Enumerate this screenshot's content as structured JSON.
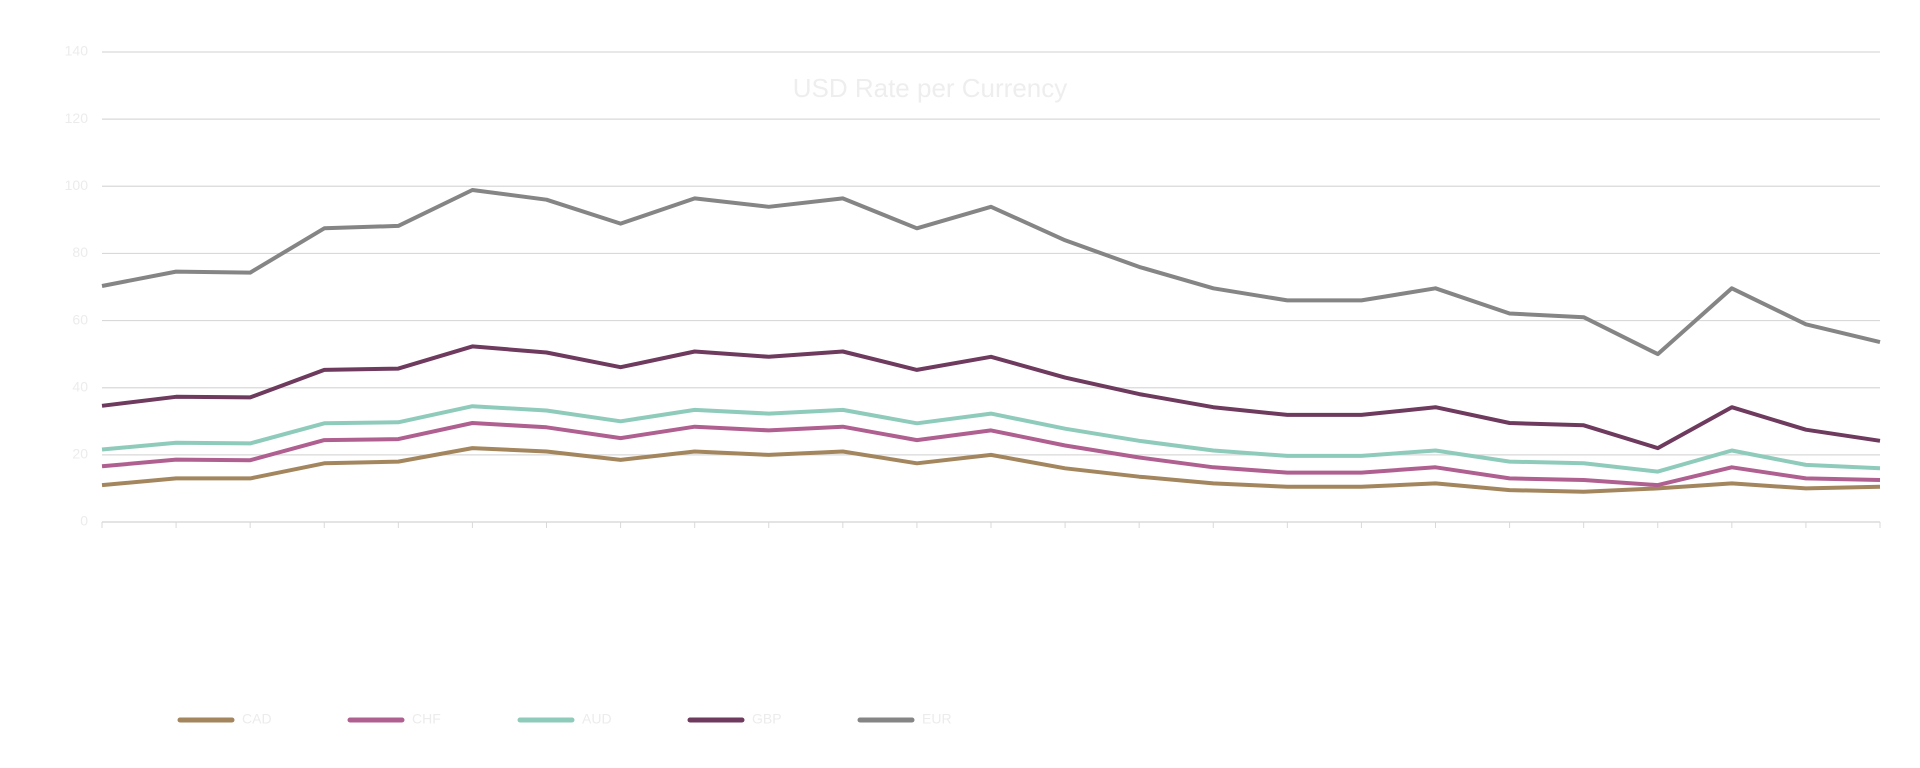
{
  "chart_data": {
    "type": "line",
    "title": "USD Rate per Currency",
    "categories": [
      null,
      null,
      null,
      null,
      null,
      null,
      null,
      null,
      null,
      null,
      null,
      null,
      null,
      null,
      null,
      null,
      null,
      null,
      null,
      null,
      null,
      null,
      null,
      null,
      null
    ],
    "ylim": [
      0,
      140
    ],
    "yticks": [
      0,
      20,
      40,
      60,
      80,
      100,
      120,
      140
    ],
    "grid": true,
    "legend": "bottom",
    "series": [
      {
        "name": "CAD",
        "color": "#a3865e",
        "values": [
          11,
          13,
          13,
          17.5,
          18,
          22,
          21,
          18.5,
          21,
          20,
          21,
          17.5,
          20,
          16,
          13.5,
          11.5,
          10.5,
          10.5,
          11.5,
          9.5,
          9,
          10,
          11.5,
          10,
          10.5
        ]
      },
      {
        "name": "CHF",
        "color": "#b06090",
        "values": [
          16.6,
          18.6,
          18.4,
          24.4,
          24.7,
          29.5,
          28.2,
          25,
          28.4,
          27.3,
          28.4,
          24.4,
          27.3,
          22.8,
          19.2,
          16.3,
          14.7,
          14.7,
          16.3,
          13,
          12.5,
          11,
          16.3,
          13,
          12.5
        ]
      },
      {
        "name": "AUD",
        "color": "#8fcbbb",
        "values": [
          21.6,
          23.6,
          23.4,
          29.4,
          29.7,
          34.5,
          33.2,
          30,
          33.4,
          32.3,
          33.4,
          29.4,
          32.3,
          27.8,
          24.2,
          21.3,
          19.7,
          19.7,
          21.3,
          18,
          17.5,
          15,
          21.3,
          17,
          16
        ]
      },
      {
        "name": "GBP",
        "color": "#6e3a5e",
        "values": [
          34.6,
          37.3,
          37.1,
          45.3,
          45.7,
          52.3,
          50.5,
          46.1,
          50.8,
          49.2,
          50.8,
          45.3,
          49.2,
          43,
          38.1,
          34.2,
          31.9,
          31.9,
          34.2,
          29.5,
          28.8,
          22,
          34.2,
          27.5,
          24.2
        ]
      },
      {
        "name": "EUR",
        "color": "#858585",
        "values": [
          70.3,
          74.6,
          74.3,
          87.5,
          88.2,
          98.9,
          96,
          88.9,
          96.4,
          93.9,
          96.4,
          87.5,
          93.9,
          83.9,
          76,
          69.6,
          66,
          66,
          69.6,
          62.1,
          61,
          50,
          69.6,
          58.9,
          53.6
        ]
      }
    ]
  }
}
